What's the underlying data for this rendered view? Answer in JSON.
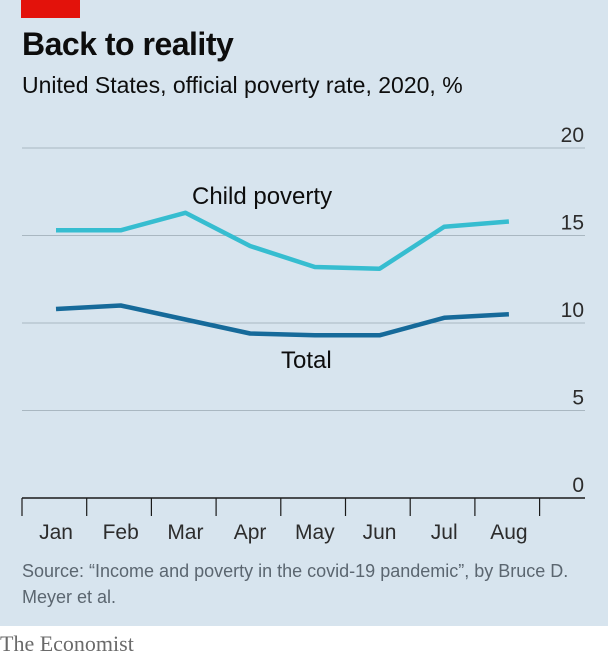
{
  "header": {
    "title": "Back to reality",
    "subtitle": "United States, official poverty rate, 2020, %"
  },
  "footer": {
    "source": "Source: “Income and poverty in the covid-19 pandemic”, by Bruce D. Meyer et al.",
    "brand": "The Economist"
  },
  "colors": {
    "panel": "#d7e4ee",
    "brand_red": "#e3120b",
    "child": "#36bdd0",
    "total": "#166a9a"
  },
  "chart_data": {
    "type": "line",
    "title": "Back to reality",
    "subtitle": "United States, official poverty rate, 2020, %",
    "categories": [
      "Jan",
      "Feb",
      "Mar",
      "Apr",
      "May",
      "Jun",
      "Jul",
      "Aug"
    ],
    "ylim": [
      0,
      20
    ],
    "yticks": [
      0,
      5,
      10,
      15,
      20
    ],
    "grid": true,
    "series": [
      {
        "name": "Child poverty",
        "values": [
          15.3,
          15.3,
          16.3,
          14.4,
          13.2,
          13.1,
          15.5,
          15.8
        ]
      },
      {
        "name": "Total",
        "values": [
          10.8,
          11.0,
          10.2,
          9.4,
          9.3,
          9.3,
          10.3,
          10.5
        ]
      }
    ]
  }
}
